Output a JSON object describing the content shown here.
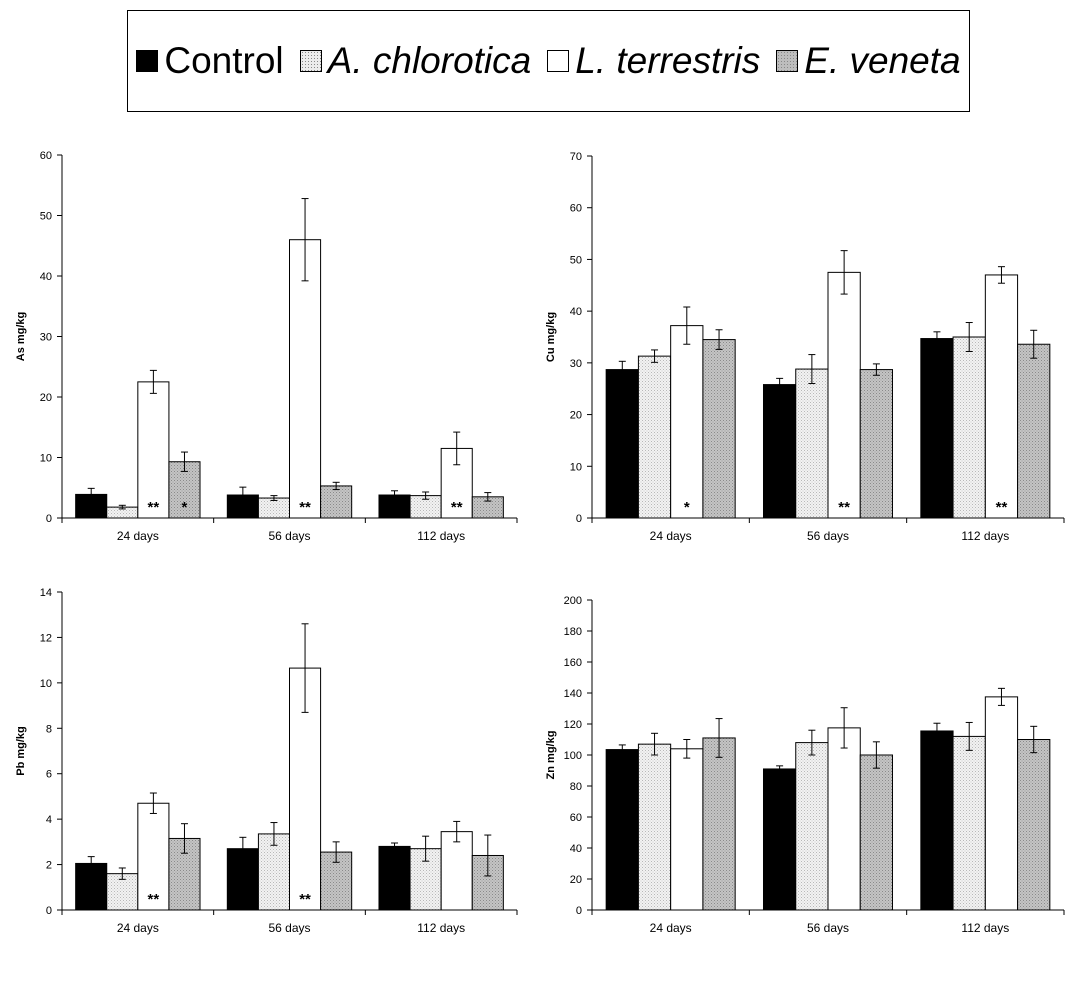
{
  "legend": {
    "items": [
      {
        "label": "Control",
        "color": "#000000",
        "pattern": "solid",
        "italic": false
      },
      {
        "label": "A. chlorotica",
        "color": "#ececec",
        "pattern": "dots",
        "italic": true
      },
      {
        "label": "L. terrestris",
        "color": "#ffffff",
        "pattern": "none",
        "italic": true
      },
      {
        "label": "E. veneta",
        "color": "#bdbdbd",
        "pattern": "dots",
        "italic": true
      }
    ]
  },
  "chart_data": [
    {
      "type": "bar",
      "title": "",
      "xlabel": "",
      "ylabel": "As mg/kg",
      "ylim": [
        0,
        60
      ],
      "yticks": [
        0,
        10,
        20,
        30,
        40,
        50,
        60
      ],
      "categories": [
        "24 days",
        "56 days",
        "112 days"
      ],
      "series": [
        {
          "name": "Control",
          "values": [
            3.9,
            3.8,
            3.8
          ],
          "errors": [
            1.0,
            1.3,
            0.7
          ]
        },
        {
          "name": "A. chlorotica",
          "values": [
            1.8,
            3.3,
            3.7
          ],
          "errors": [
            0.3,
            0.4,
            0.6
          ]
        },
        {
          "name": "L. terrestris",
          "values": [
            22.5,
            46.0,
            11.5
          ],
          "errors": [
            1.9,
            6.8,
            2.7
          ]
        },
        {
          "name": "E. veneta",
          "values": [
            9.3,
            5.3,
            3.5
          ],
          "errors": [
            1.6,
            0.6,
            0.7
          ]
        }
      ],
      "annotations": [
        {
          "category": "24 days",
          "series": "L. terrestris",
          "text": "**"
        },
        {
          "category": "24 days",
          "series": "E. veneta",
          "text": "*"
        },
        {
          "category": "56 days",
          "series": "L. terrestris",
          "text": "**"
        },
        {
          "category": "112 days",
          "series": "L. terrestris",
          "text": "**"
        }
      ]
    },
    {
      "type": "bar",
      "title": "",
      "xlabel": "",
      "ylabel": "Cu mg/kg",
      "ylim": [
        0,
        70
      ],
      "yticks": [
        0,
        10,
        20,
        30,
        40,
        50,
        60,
        70
      ],
      "categories": [
        "24 days",
        "56 days",
        "112 days"
      ],
      "series": [
        {
          "name": "Control",
          "values": [
            28.7,
            25.8,
            34.7
          ],
          "errors": [
            1.6,
            1.2,
            1.3
          ]
        },
        {
          "name": "A. chlorotica",
          "values": [
            31.3,
            28.8,
            35.0
          ],
          "errors": [
            1.2,
            2.8,
            2.8
          ]
        },
        {
          "name": "L. terrestris",
          "values": [
            37.2,
            47.5,
            47.0
          ],
          "errors": [
            3.6,
            4.2,
            1.6
          ]
        },
        {
          "name": "E. veneta",
          "values": [
            34.5,
            28.7,
            33.6
          ],
          "errors": [
            1.9,
            1.1,
            2.7
          ]
        }
      ],
      "annotations": [
        {
          "category": "24 days",
          "series": "L. terrestris",
          "text": "*"
        },
        {
          "category": "56 days",
          "series": "L. terrestris",
          "text": "**"
        },
        {
          "category": "112 days",
          "series": "L. terrestris",
          "text": "**"
        }
      ]
    },
    {
      "type": "bar",
      "title": "",
      "xlabel": "",
      "ylabel": "Pb mg/kg",
      "ylim": [
        0,
        14
      ],
      "yticks": [
        0,
        2,
        4,
        6,
        8,
        10,
        12,
        14
      ],
      "categories": [
        "24 days",
        "56 days",
        "112 days"
      ],
      "series": [
        {
          "name": "Control",
          "values": [
            2.05,
            2.7,
            2.8
          ],
          "errors": [
            0.3,
            0.5,
            0.15
          ]
        },
        {
          "name": "A. chlorotica",
          "values": [
            1.6,
            3.35,
            2.7
          ],
          "errors": [
            0.25,
            0.5,
            0.55
          ]
        },
        {
          "name": "L. terrestris",
          "values": [
            4.7,
            10.65,
            3.45
          ],
          "errors": [
            0.45,
            1.95,
            0.45
          ]
        },
        {
          "name": "E. veneta",
          "values": [
            3.15,
            2.55,
            2.4
          ],
          "errors": [
            0.65,
            0.45,
            0.9
          ]
        }
      ],
      "annotations": [
        {
          "category": "24 days",
          "series": "L. terrestris",
          "text": "**"
        },
        {
          "category": "56 days",
          "series": "L. terrestris",
          "text": "**"
        }
      ]
    },
    {
      "type": "bar",
      "title": "",
      "xlabel": "",
      "ylabel": "Zn mg/kg",
      "ylim": [
        0,
        200
      ],
      "yticks": [
        0,
        20,
        40,
        60,
        80,
        100,
        120,
        140,
        160,
        180,
        200
      ],
      "categories": [
        "24 days",
        "56 days",
        "112 days"
      ],
      "series": [
        {
          "name": "Control",
          "values": [
            103.5,
            91.0,
            115.5
          ],
          "errors": [
            3.0,
            2.0,
            5.0
          ]
        },
        {
          "name": "A. chlorotica",
          "values": [
            107.0,
            108.0,
            112.0
          ],
          "errors": [
            7.0,
            8.0,
            9.0
          ]
        },
        {
          "name": "L. terrestris",
          "values": [
            104.0,
            117.5,
            137.5
          ],
          "errors": [
            6.0,
            13.0,
            5.5
          ]
        },
        {
          "name": "E. veneta",
          "values": [
            111.0,
            100.0,
            110.0
          ],
          "errors": [
            12.5,
            8.5,
            8.5
          ]
        }
      ],
      "annotations": []
    }
  ]
}
